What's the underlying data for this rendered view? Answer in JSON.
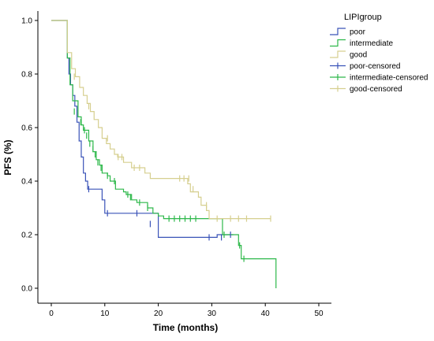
{
  "chart_data": {
    "type": "line",
    "subtype": "kaplan-meier-step",
    "xlabel": "Time (months)",
    "ylabel": "PFS (%)",
    "xlim": [
      0,
      50
    ],
    "ylim": [
      0,
      1
    ],
    "x_ticks": [
      0,
      10,
      20,
      30,
      40,
      50
    ],
    "y_ticks": [
      0.0,
      0.2,
      0.4,
      0.6,
      0.8,
      1.0
    ],
    "grid": false,
    "legend_title": "LIPIgroup",
    "legend_position": "top-right",
    "series": [
      {
        "name": "poor",
        "color": "#3a53b8",
        "step_points": [
          [
            0,
            1.0
          ],
          [
            3,
            1.0
          ],
          [
            3,
            0.86
          ],
          [
            3.3,
            0.8
          ],
          [
            3.6,
            0.76
          ],
          [
            4,
            0.72
          ],
          [
            4.4,
            0.68
          ],
          [
            4.8,
            0.62
          ],
          [
            5.2,
            0.55
          ],
          [
            5.6,
            0.49
          ],
          [
            6,
            0.43
          ],
          [
            6.4,
            0.4
          ],
          [
            6.8,
            0.37
          ],
          [
            8.5,
            0.37
          ],
          [
            9.5,
            0.33
          ],
          [
            10,
            0.28
          ],
          [
            20,
            0.28
          ],
          [
            20,
            0.19
          ],
          [
            31,
            0.19
          ],
          [
            31,
            0.2
          ],
          [
            34,
            0.2
          ]
        ],
        "censored": [
          [
            7,
            0.37
          ],
          [
            10.5,
            0.28
          ],
          [
            16,
            0.28
          ],
          [
            18.5,
            0.24
          ],
          [
            29.5,
            0.19
          ],
          [
            31.8,
            0.19
          ],
          [
            33.5,
            0.2
          ]
        ]
      },
      {
        "name": "intermediate",
        "color": "#2db84a",
        "step_points": [
          [
            0,
            1.0
          ],
          [
            3,
            1.0
          ],
          [
            3,
            0.86
          ],
          [
            3.5,
            0.76
          ],
          [
            4,
            0.7
          ],
          [
            5,
            0.64
          ],
          [
            5.6,
            0.61
          ],
          [
            6,
            0.59
          ],
          [
            7,
            0.55
          ],
          [
            7.8,
            0.51
          ],
          [
            8.4,
            0.48
          ],
          [
            9,
            0.46
          ],
          [
            9.5,
            0.43
          ],
          [
            10.5,
            0.42
          ],
          [
            11,
            0.4
          ],
          [
            12,
            0.37
          ],
          [
            13.5,
            0.36
          ],
          [
            14,
            0.35
          ],
          [
            15,
            0.33
          ],
          [
            16,
            0.32
          ],
          [
            18,
            0.3
          ],
          [
            19,
            0.28
          ],
          [
            20,
            0.27
          ],
          [
            21,
            0.26
          ],
          [
            32,
            0.26
          ],
          [
            32,
            0.2
          ],
          [
            34,
            0.2
          ],
          [
            35,
            0.16
          ],
          [
            35.5,
            0.11
          ],
          [
            42,
            0.11
          ],
          [
            42,
            0.0
          ]
        ],
        "censored": [
          [
            4.3,
            0.66
          ],
          [
            5.5,
            0.62
          ],
          [
            6.2,
            0.59
          ],
          [
            6.6,
            0.57
          ],
          [
            7.2,
            0.54
          ],
          [
            7.8,
            0.52
          ],
          [
            8.2,
            0.5
          ],
          [
            8.7,
            0.47
          ],
          [
            9.3,
            0.45
          ],
          [
            10.5,
            0.42
          ],
          [
            11.8,
            0.4
          ],
          [
            14.3,
            0.35
          ],
          [
            14.8,
            0.34
          ],
          [
            16.5,
            0.32
          ],
          [
            18,
            0.3
          ],
          [
            22,
            0.26
          ],
          [
            23,
            0.26
          ],
          [
            24,
            0.26
          ],
          [
            25,
            0.26
          ],
          [
            26,
            0.26
          ],
          [
            27,
            0.26
          ],
          [
            32.3,
            0.2
          ],
          [
            35.2,
            0.16
          ],
          [
            36,
            0.11
          ]
        ]
      },
      {
        "name": "good",
        "color": "#d6cf8f",
        "step_points": [
          [
            0,
            1.0
          ],
          [
            3,
            1.0
          ],
          [
            3,
            0.88
          ],
          [
            3.8,
            0.82
          ],
          [
            4.5,
            0.79
          ],
          [
            5.3,
            0.75
          ],
          [
            6,
            0.72
          ],
          [
            6.7,
            0.69
          ],
          [
            7.3,
            0.66
          ],
          [
            8,
            0.63
          ],
          [
            8.8,
            0.6
          ],
          [
            9.5,
            0.56
          ],
          [
            10.3,
            0.54
          ],
          [
            11,
            0.52
          ],
          [
            11.8,
            0.5
          ],
          [
            12.4,
            0.49
          ],
          [
            13.5,
            0.47
          ],
          [
            15,
            0.45
          ],
          [
            17.5,
            0.43
          ],
          [
            18.5,
            0.41
          ],
          [
            25,
            0.41
          ],
          [
            25.5,
            0.39
          ],
          [
            26,
            0.36
          ],
          [
            27.5,
            0.34
          ],
          [
            28,
            0.31
          ],
          [
            29,
            0.29
          ],
          [
            29.5,
            0.26
          ],
          [
            41,
            0.26
          ]
        ],
        "censored": [
          [
            4.3,
            0.79
          ],
          [
            7,
            0.68
          ],
          [
            10.5,
            0.56
          ],
          [
            12.5,
            0.49
          ],
          [
            13.2,
            0.49
          ],
          [
            15.5,
            0.45
          ],
          [
            16.5,
            0.45
          ],
          [
            24,
            0.41
          ],
          [
            24.8,
            0.41
          ],
          [
            25.7,
            0.41
          ],
          [
            26.5,
            0.37
          ],
          [
            29,
            0.31
          ],
          [
            31,
            0.26
          ],
          [
            33.5,
            0.26
          ],
          [
            35,
            0.26
          ],
          [
            36.5,
            0.26
          ],
          [
            41,
            0.26
          ]
        ]
      }
    ],
    "legend_entries": [
      "poor",
      "intermediate",
      "good",
      "poor-censored",
      "intermediate-censored",
      "good-censored"
    ]
  }
}
